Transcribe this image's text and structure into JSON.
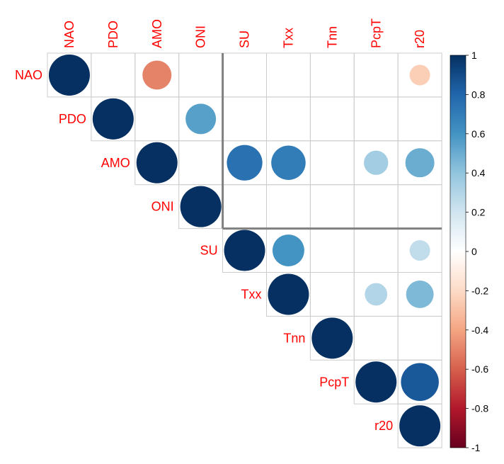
{
  "chart_data": {
    "type": "heatmap",
    "subtype": "correlation-upper-triangle",
    "variables": [
      "NAO",
      "PDO",
      "AMO",
      "ONI",
      "SU",
      "Txx",
      "Tnn",
      "PcpT",
      "r20"
    ],
    "cells": [
      {
        "row": "NAO",
        "col": "NAO",
        "r": 1.0
      },
      {
        "row": "NAO",
        "col": "AMO",
        "r": -0.5
      },
      {
        "row": "NAO",
        "col": "r20",
        "r": -0.25
      },
      {
        "row": "PDO",
        "col": "PDO",
        "r": 1.0
      },
      {
        "row": "PDO",
        "col": "ONI",
        "r": 0.55
      },
      {
        "row": "AMO",
        "col": "AMO",
        "r": 1.0
      },
      {
        "row": "AMO",
        "col": "SU",
        "r": 0.75
      },
      {
        "row": "AMO",
        "col": "Txx",
        "r": 0.7
      },
      {
        "row": "AMO",
        "col": "PcpT",
        "r": 0.35
      },
      {
        "row": "AMO",
        "col": "r20",
        "r": 0.5
      },
      {
        "row": "ONI",
        "col": "ONI",
        "r": 1.0
      },
      {
        "row": "SU",
        "col": "SU",
        "r": 1.0
      },
      {
        "row": "SU",
        "col": "Txx",
        "r": 0.6
      },
      {
        "row": "SU",
        "col": "r20",
        "r": 0.25
      },
      {
        "row": "Txx",
        "col": "Txx",
        "r": 1.0
      },
      {
        "row": "Txx",
        "col": "PcpT",
        "r": 0.3
      },
      {
        "row": "Txx",
        "col": "r20",
        "r": 0.45
      },
      {
        "row": "Tnn",
        "col": "Tnn",
        "r": 1.0
      },
      {
        "row": "PcpT",
        "col": "PcpT",
        "r": 1.0
      },
      {
        "row": "PcpT",
        "col": "r20",
        "r": 0.85
      },
      {
        "row": "r20",
        "col": "r20",
        "r": 1.0
      }
    ],
    "group_divider": {
      "between_rows": [
        "ONI",
        "SU"
      ],
      "between_cols": [
        "ONI",
        "SU"
      ]
    },
    "colorbar": {
      "range": [
        -1,
        1
      ],
      "ticks": [
        1,
        0.8,
        0.6,
        0.4,
        0.2,
        0,
        -0.2,
        -0.4,
        -0.6,
        -0.8,
        -1
      ],
      "tick_labels": [
        "1",
        "0.8",
        "0.6",
        "0.4",
        "0.2",
        "0",
        "-0.2",
        "-0.4",
        "-0.6",
        "-0.8",
        "-1"
      ]
    },
    "colors": {
      "label": "#ff0000",
      "grid": "#cccccc",
      "divider": "#808080",
      "negative_strong": "#67001f",
      "neutral": "#ffffff",
      "positive_strong": "#053061"
    }
  }
}
